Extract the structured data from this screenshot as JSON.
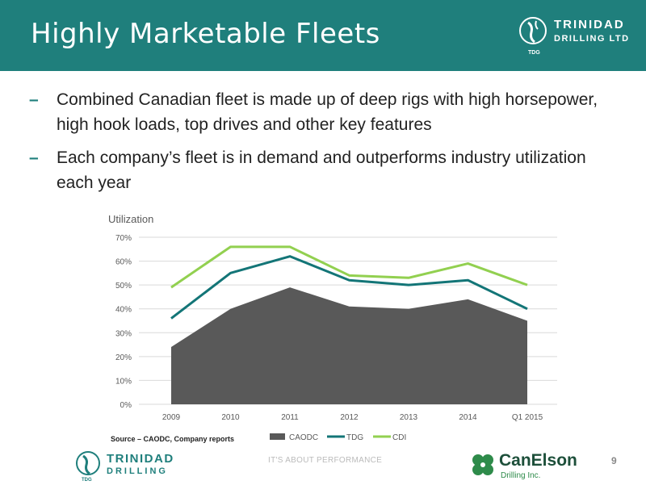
{
  "slide": {
    "title": "Highly Marketable Fleets",
    "page_number": "9",
    "footer": "IT'S ABOUT PERFORMANCE"
  },
  "logo_top": {
    "line1": "TRINIDAD",
    "line2": "DRILLING LTD",
    "mark": "TDG"
  },
  "logo_bottom_left": {
    "line1": "TRINIDAD",
    "line2": "DRILLING",
    "mark": "TDG"
  },
  "logo_bottom_right": {
    "line1": "CanElson",
    "line2": "Drilling Inc."
  },
  "bullets": [
    {
      "dash": "–",
      "text": "Combined Canadian fleet is made up of deep rigs with high horsepower, high hook loads, top drives and other key features"
    },
    {
      "dash": "–",
      "text": "Each company’s fleet is in demand and outperforms industry utilization each year"
    }
  ],
  "chart_data": {
    "type": "line",
    "title": "Utilization",
    "source": "Source – CAODC, Company reports",
    "categories": [
      "2009",
      "2010",
      "2011",
      "2012",
      "2013",
      "2014",
      "Q1 2015"
    ],
    "ylim": [
      0,
      70
    ],
    "yticks": [
      "0%",
      "10%",
      "20%",
      "30%",
      "40%",
      "50%",
      "60%",
      "70%"
    ],
    "ytick_values": [
      0,
      10,
      20,
      30,
      40,
      50,
      60,
      70
    ],
    "grid": true,
    "legend": "bottom",
    "series": [
      {
        "name": "CAODC",
        "kind": "area",
        "color": "#595959",
        "values": [
          24,
          40,
          49,
          41,
          40,
          44,
          35
        ]
      },
      {
        "name": "TDG",
        "kind": "line",
        "color": "#137577",
        "values": [
          36,
          55,
          62,
          52,
          50,
          52,
          40
        ]
      },
      {
        "name": "CDI",
        "kind": "line",
        "color": "#92d050",
        "values": [
          49,
          66,
          66,
          54,
          53,
          59,
          50
        ]
      }
    ]
  }
}
